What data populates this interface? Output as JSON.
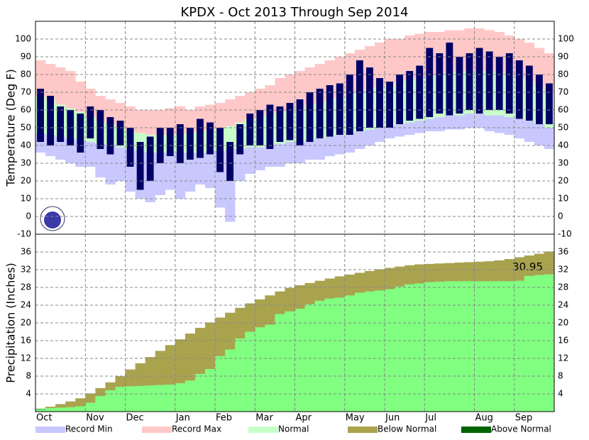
{
  "title": "KPDX - Oct 2013 Through Sep 2014",
  "chart_data": [
    {
      "type": "range",
      "y_label": "Temperature (Deg F)",
      "ylim": [
        -10,
        110
      ],
      "yticks": [
        -10,
        0,
        10,
        20,
        30,
        40,
        50,
        60,
        70,
        80,
        90,
        100
      ],
      "grid": true,
      "series": [
        {
          "name": "Record Min",
          "color": "#c8c8ff",
          "values": [
            36,
            34,
            32,
            30,
            28,
            28,
            22,
            18,
            20,
            14,
            10,
            8,
            12,
            15,
            10,
            14,
            18,
            16,
            5,
            -3,
            20,
            24,
            26,
            28,
            28,
            30,
            30,
            32,
            32,
            34,
            35,
            36,
            38,
            40,
            42,
            44,
            45,
            46,
            47,
            48,
            48,
            49,
            49,
            50,
            50,
            48,
            47,
            46,
            44,
            42,
            40,
            38
          ]
        },
        {
          "name": "Record Max",
          "color": "#ffc8c8",
          "values": [
            88,
            86,
            84,
            82,
            76,
            72,
            68,
            66,
            64,
            62,
            60,
            60,
            60,
            61,
            62,
            60,
            62,
            63,
            64,
            66,
            68,
            70,
            72,
            74,
            78,
            80,
            82,
            84,
            86,
            88,
            90,
            92,
            94,
            96,
            98,
            100,
            100,
            102,
            103,
            104,
            104,
            105,
            105,
            106,
            106,
            105,
            104,
            102,
            100,
            98,
            95,
            92
          ]
        },
        {
          "name": "Normal",
          "color": "#c8ffc8",
          "high": [
            68,
            66,
            63,
            61,
            59,
            56,
            54,
            52,
            50,
            48,
            47,
            46,
            46,
            46,
            46,
            47,
            48,
            49,
            50,
            51,
            53,
            55,
            56,
            58,
            59,
            60,
            61,
            63,
            64,
            66,
            67,
            69,
            70,
            72,
            73,
            74,
            76,
            77,
            78,
            79,
            80,
            81,
            82,
            82,
            82,
            82,
            81,
            80,
            78,
            76,
            73,
            70
          ],
          "low": [
            47,
            46,
            45,
            44,
            43,
            42,
            41,
            40,
            39,
            38,
            37,
            36,
            36,
            36,
            36,
            36,
            36,
            37,
            37,
            38,
            38,
            39,
            39,
            40,
            41,
            42,
            42,
            43,
            44,
            45,
            46,
            47,
            48,
            49,
            50,
            51,
            52,
            53,
            54,
            55,
            56,
            57,
            57,
            58,
            58,
            57,
            57,
            56,
            55,
            54,
            52,
            50
          ]
        }
      ],
      "observed": {
        "color": "#000066",
        "high": [
          72,
          68,
          62,
          60,
          58,
          62,
          60,
          56,
          54,
          50,
          42,
          45,
          50,
          50,
          52,
          50,
          55,
          53,
          50,
          42,
          52,
          58,
          60,
          63,
          62,
          64,
          66,
          70,
          72,
          74,
          75,
          80,
          88,
          84,
          78,
          76,
          80,
          82,
          85,
          95,
          92,
          98,
          90,
          92,
          95,
          93,
          90,
          92,
          88,
          85,
          80,
          75
        ],
        "low": [
          42,
          40,
          42,
          40,
          36,
          44,
          38,
          35,
          40,
          28,
          15,
          20,
          30,
          34,
          30,
          32,
          33,
          35,
          25,
          20,
          35,
          40,
          40,
          38,
          42,
          43,
          40,
          42,
          44,
          45,
          46,
          46,
          48,
          50,
          50,
          50,
          52,
          54,
          55,
          56,
          58,
          57,
          58,
          60,
          58,
          60,
          60,
          58,
          55,
          54,
          52,
          52
        ]
      }
    },
    {
      "type": "area",
      "y_label": "Precipitation (Inches)",
      "ylim": [
        0,
        40
      ],
      "yticks": [
        4,
        8,
        12,
        16,
        20,
        24,
        28,
        32,
        36
      ],
      "grid": true,
      "categories": [
        "Oct",
        null,
        null,
        null,
        null,
        "Nov",
        null,
        null,
        null,
        "Dec",
        null,
        null,
        null,
        null,
        "Jan",
        null,
        null,
        null,
        "Feb",
        null,
        null,
        null,
        "Mar",
        null,
        null,
        null,
        "Apr",
        null,
        null,
        null,
        null,
        "May",
        null,
        null,
        null,
        "Jun",
        null,
        null,
        null,
        "Jul",
        null,
        null,
        null,
        null,
        "Aug",
        null,
        null,
        null,
        "Sep",
        null,
        null,
        null
      ],
      "series": [
        {
          "name": "Below Normal",
          "color": "#aaa34e",
          "values": [
            0.5,
            1.1,
            1.7,
            2.3,
            3.0,
            4.1,
            5.3,
            6.6,
            8.0,
            9.5,
            10.9,
            12.3,
            13.7,
            15.0,
            16.3,
            17.6,
            18.9,
            20.1,
            21.2,
            22.3,
            23.4,
            24.4,
            25.3,
            26.2,
            27.1,
            27.9,
            28.5,
            29.0,
            29.5,
            30.0,
            30.5,
            30.9,
            31.3,
            31.7,
            32.1,
            32.4,
            32.7,
            33.0,
            33.2,
            33.3,
            33.4,
            33.5,
            33.6,
            33.7,
            33.8,
            33.9,
            34.1,
            34.4,
            34.8,
            35.2,
            35.6,
            36.1
          ]
        },
        {
          "name": "Above Normal",
          "color": "#006400"
        }
      ],
      "observed": {
        "color": "#80ff80",
        "end_label": "30.95",
        "values": [
          0.6,
          0.8,
          0.9,
          1.0,
          1.2,
          2.0,
          3.5,
          4.8,
          5.6,
          5.7,
          5.8,
          5.9,
          6.0,
          6.1,
          6.4,
          7.0,
          8.5,
          9.6,
          12.5,
          14.0,
          16.5,
          18.0,
          19.0,
          19.6,
          22.0,
          22.6,
          23.2,
          24.2,
          25.0,
          25.5,
          25.7,
          26.2,
          26.8,
          27.1,
          27.3,
          27.6,
          28.2,
          28.7,
          28.9,
          29.2,
          29.3,
          29.4,
          29.4,
          29.4,
          29.4,
          29.4,
          29.4,
          29.4,
          29.5,
          30.6,
          30.8,
          30.95
        ]
      }
    }
  ]
}
